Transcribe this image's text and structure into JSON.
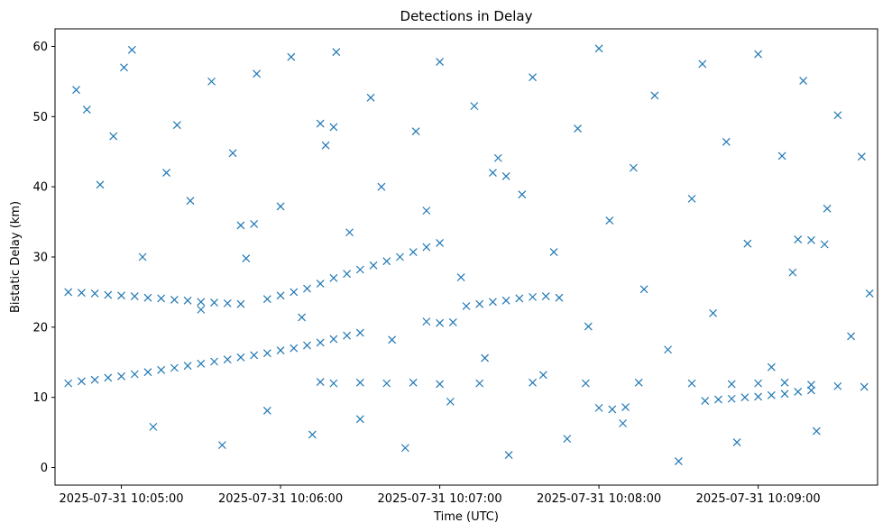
{
  "chart_data": {
    "type": "scatter",
    "title": "Detections in Delay",
    "xlabel": "Time (UTC)",
    "ylabel": "Bistatic Delay (km)",
    "x_range": [
      "2025-07-31 10:04:35",
      "2025-07-31 10:09:45"
    ],
    "ylim": [
      -2.5,
      62.5
    ],
    "xticks": [
      {
        "time": "2025-07-31 10:05:00",
        "label": "2025-07-31 10:05:00"
      },
      {
        "time": "2025-07-31 10:06:00",
        "label": "2025-07-31 10:06:00"
      },
      {
        "time": "2025-07-31 10:07:00",
        "label": "2025-07-31 10:07:00"
      },
      {
        "time": "2025-07-31 10:08:00",
        "label": "2025-07-31 10:08:00"
      },
      {
        "time": "2025-07-31 10:09:00",
        "label": "2025-07-31 10:09:00"
      }
    ],
    "yticks": [
      0,
      10,
      20,
      30,
      40,
      50,
      60
    ],
    "marker": "x",
    "color": "#1f77b4",
    "grid": false,
    "legend": false,
    "series": [
      {
        "points": [
          [
            "2025-07-31 10:04:40",
            12.0
          ],
          [
            "2025-07-31 10:04:45",
            12.3
          ],
          [
            "2025-07-31 10:04:50",
            12.5
          ],
          [
            "2025-07-31 10:04:55",
            12.8
          ],
          [
            "2025-07-31 10:05:00",
            13.0
          ],
          [
            "2025-07-31 10:05:05",
            13.3
          ],
          [
            "2025-07-31 10:05:10",
            13.6
          ],
          [
            "2025-07-31 10:05:15",
            13.9
          ],
          [
            "2025-07-31 10:05:20",
            14.2
          ],
          [
            "2025-07-31 10:05:25",
            14.5
          ],
          [
            "2025-07-31 10:05:30",
            14.8
          ],
          [
            "2025-07-31 10:05:35",
            15.1
          ],
          [
            "2025-07-31 10:05:40",
            15.4
          ],
          [
            "2025-07-31 10:05:45",
            15.7
          ],
          [
            "2025-07-31 10:05:50",
            16.0
          ],
          [
            "2025-07-31 10:05:55",
            16.3
          ],
          [
            "2025-07-31 10:06:00",
            16.7
          ],
          [
            "2025-07-31 10:06:05",
            17.0
          ],
          [
            "2025-07-31 10:06:10",
            17.4
          ],
          [
            "2025-07-31 10:06:15",
            17.8
          ],
          [
            "2025-07-31 10:06:20",
            18.3
          ],
          [
            "2025-07-31 10:06:25",
            18.8
          ],
          [
            "2025-07-31 10:06:30",
            19.2
          ],
          [
            "2025-07-31 10:04:40",
            25.0
          ],
          [
            "2025-07-31 10:04:45",
            24.9
          ],
          [
            "2025-07-31 10:04:50",
            24.8
          ],
          [
            "2025-07-31 10:04:55",
            24.6
          ],
          [
            "2025-07-31 10:05:00",
            24.5
          ],
          [
            "2025-07-31 10:05:05",
            24.4
          ],
          [
            "2025-07-31 10:05:10",
            24.2
          ],
          [
            "2025-07-31 10:05:15",
            24.1
          ],
          [
            "2025-07-31 10:05:20",
            23.9
          ],
          [
            "2025-07-31 10:05:25",
            23.8
          ],
          [
            "2025-07-31 10:05:30",
            23.6
          ],
          [
            "2025-07-31 10:05:35",
            23.5
          ],
          [
            "2025-07-31 10:05:40",
            23.4
          ],
          [
            "2025-07-31 10:05:45",
            23.3
          ],
          [
            "2025-07-31 10:05:55",
            24.0
          ],
          [
            "2025-07-31 10:06:00",
            24.5
          ],
          [
            "2025-07-31 10:06:05",
            25.0
          ],
          [
            "2025-07-31 10:06:10",
            25.5
          ],
          [
            "2025-07-31 10:06:15",
            26.2
          ],
          [
            "2025-07-31 10:06:20",
            27.0
          ],
          [
            "2025-07-31 10:06:25",
            27.6
          ],
          [
            "2025-07-31 10:06:30",
            28.2
          ],
          [
            "2025-07-31 10:06:35",
            28.8
          ],
          [
            "2025-07-31 10:06:40",
            29.4
          ],
          [
            "2025-07-31 10:06:45",
            30.0
          ],
          [
            "2025-07-31 10:06:50",
            30.7
          ],
          [
            "2025-07-31 10:06:55",
            31.4
          ],
          [
            "2025-07-31 10:07:00",
            32.0
          ],
          [
            "2025-07-31 10:06:55",
            20.8
          ],
          [
            "2025-07-31 10:07:00",
            20.6
          ],
          [
            "2025-07-31 10:07:05",
            20.7
          ],
          [
            "2025-07-31 10:07:10",
            23.0
          ],
          [
            "2025-07-31 10:07:15",
            23.3
          ],
          [
            "2025-07-31 10:07:20",
            23.6
          ],
          [
            "2025-07-31 10:07:25",
            23.8
          ],
          [
            "2025-07-31 10:07:30",
            24.1
          ],
          [
            "2025-07-31 10:07:35",
            24.3
          ],
          [
            "2025-07-31 10:07:40",
            24.4
          ],
          [
            "2025-07-31 10:07:45",
            24.2
          ],
          [
            "2025-07-31 10:06:15",
            12.2
          ],
          [
            "2025-07-31 10:06:20",
            12.0
          ],
          [
            "2025-07-31 10:06:30",
            12.1
          ],
          [
            "2025-07-31 10:06:40",
            12.0
          ],
          [
            "2025-07-31 10:06:50",
            12.1
          ],
          [
            "2025-07-31 10:07:00",
            11.9
          ],
          [
            "2025-07-31 10:07:15",
            12.0
          ],
          [
            "2025-07-31 10:07:35",
            12.1
          ],
          [
            "2025-07-31 10:07:55",
            12.0
          ],
          [
            "2025-07-31 10:08:15",
            12.1
          ],
          [
            "2025-07-31 10:08:35",
            12.0
          ],
          [
            "2025-07-31 10:08:50",
            11.9
          ],
          [
            "2025-07-31 10:09:00",
            12.0
          ],
          [
            "2025-07-31 10:09:10",
            12.1
          ],
          [
            "2025-07-31 10:09:20",
            11.8
          ],
          [
            "2025-07-31 10:09:30",
            11.6
          ],
          [
            "2025-07-31 10:09:40",
            11.5
          ],
          [
            "2025-07-31 10:08:40",
            9.5
          ],
          [
            "2025-07-31 10:08:45",
            9.7
          ],
          [
            "2025-07-31 10:08:50",
            9.8
          ],
          [
            "2025-07-31 10:08:55",
            10.0
          ],
          [
            "2025-07-31 10:09:00",
            10.1
          ],
          [
            "2025-07-31 10:09:05",
            10.3
          ],
          [
            "2025-07-31 10:09:10",
            10.5
          ],
          [
            "2025-07-31 10:09:15",
            10.8
          ],
          [
            "2025-07-31 10:09:20",
            11.0
          ],
          [
            "2025-07-31 10:08:00",
            8.5
          ],
          [
            "2025-07-31 10:08:05",
            8.3
          ],
          [
            "2025-07-31 10:08:10",
            8.6
          ],
          [
            "2025-07-31 10:05:45",
            34.5
          ],
          [
            "2025-07-31 10:05:50",
            34.7
          ],
          [
            "2025-07-31 10:06:15",
            49.0
          ],
          [
            "2025-07-31 10:06:20",
            48.5
          ],
          [
            "2025-07-31 10:07:20",
            42.0
          ],
          [
            "2025-07-31 10:07:25",
            41.5
          ],
          [
            "2025-07-31 10:09:15",
            32.5
          ],
          [
            "2025-07-31 10:09:20",
            32.4
          ],
          [
            "2025-07-31 10:09:25",
            31.8
          ],
          [
            "2025-07-31 10:04:43",
            53.8
          ],
          [
            "2025-07-31 10:04:47",
            51.0
          ],
          [
            "2025-07-31 10:04:52",
            40.3
          ],
          [
            "2025-07-31 10:04:57",
            47.2
          ],
          [
            "2025-07-31 10:05:01",
            57.0
          ],
          [
            "2025-07-31 10:05:04",
            59.5
          ],
          [
            "2025-07-31 10:05:08",
            30.0
          ],
          [
            "2025-07-31 10:05:12",
            5.8
          ],
          [
            "2025-07-31 10:05:17",
            42.0
          ],
          [
            "2025-07-31 10:05:21",
            48.8
          ],
          [
            "2025-07-31 10:05:26",
            38.0
          ],
          [
            "2025-07-31 10:05:30",
            22.5
          ],
          [
            "2025-07-31 10:05:34",
            55.0
          ],
          [
            "2025-07-31 10:05:38",
            3.2
          ],
          [
            "2025-07-31 10:05:42",
            44.8
          ],
          [
            "2025-07-31 10:05:47",
            29.8
          ],
          [
            "2025-07-31 10:05:51",
            56.1
          ],
          [
            "2025-07-31 10:05:55",
            8.1
          ],
          [
            "2025-07-31 10:06:00",
            37.2
          ],
          [
            "2025-07-31 10:06:04",
            58.5
          ],
          [
            "2025-07-31 10:06:08",
            21.4
          ],
          [
            "2025-07-31 10:06:12",
            4.7
          ],
          [
            "2025-07-31 10:06:17",
            45.9
          ],
          [
            "2025-07-31 10:06:21",
            59.2
          ],
          [
            "2025-07-31 10:06:26",
            33.5
          ],
          [
            "2025-07-31 10:06:30",
            6.9
          ],
          [
            "2025-07-31 10:06:34",
            52.7
          ],
          [
            "2025-07-31 10:06:38",
            40.0
          ],
          [
            "2025-07-31 10:06:42",
            18.2
          ],
          [
            "2025-07-31 10:06:47",
            2.8
          ],
          [
            "2025-07-31 10:06:51",
            47.9
          ],
          [
            "2025-07-31 10:06:55",
            36.6
          ],
          [
            "2025-07-31 10:07:00",
            57.8
          ],
          [
            "2025-07-31 10:07:04",
            9.4
          ],
          [
            "2025-07-31 10:07:08",
            27.1
          ],
          [
            "2025-07-31 10:07:13",
            51.5
          ],
          [
            "2025-07-31 10:07:17",
            15.6
          ],
          [
            "2025-07-31 10:07:22",
            44.1
          ],
          [
            "2025-07-31 10:07:26",
            1.8
          ],
          [
            "2025-07-31 10:07:31",
            38.9
          ],
          [
            "2025-07-31 10:07:35",
            55.6
          ],
          [
            "2025-07-31 10:07:39",
            13.2
          ],
          [
            "2025-07-31 10:07:43",
            30.7
          ],
          [
            "2025-07-31 10:07:48",
            4.1
          ],
          [
            "2025-07-31 10:07:52",
            48.3
          ],
          [
            "2025-07-31 10:07:56",
            20.1
          ],
          [
            "2025-07-31 10:08:00",
            59.7
          ],
          [
            "2025-07-31 10:08:04",
            35.2
          ],
          [
            "2025-07-31 10:08:09",
            6.3
          ],
          [
            "2025-07-31 10:08:13",
            42.7
          ],
          [
            "2025-07-31 10:08:17",
            25.4
          ],
          [
            "2025-07-31 10:08:21",
            53.0
          ],
          [
            "2025-07-31 10:08:26",
            16.8
          ],
          [
            "2025-07-31 10:08:30",
            0.9
          ],
          [
            "2025-07-31 10:08:35",
            38.3
          ],
          [
            "2025-07-31 10:08:39",
            57.5
          ],
          [
            "2025-07-31 10:08:43",
            22.0
          ],
          [
            "2025-07-31 10:08:48",
            46.4
          ],
          [
            "2025-07-31 10:08:52",
            3.6
          ],
          [
            "2025-07-31 10:08:56",
            31.9
          ],
          [
            "2025-07-31 10:09:00",
            58.9
          ],
          [
            "2025-07-31 10:09:05",
            14.3
          ],
          [
            "2025-07-31 10:09:09",
            44.4
          ],
          [
            "2025-07-31 10:09:13",
            27.8
          ],
          [
            "2025-07-31 10:09:17",
            55.1
          ],
          [
            "2025-07-31 10:09:22",
            5.2
          ],
          [
            "2025-07-31 10:09:26",
            36.9
          ],
          [
            "2025-07-31 10:09:30",
            50.2
          ],
          [
            "2025-07-31 10:09:35",
            18.7
          ],
          [
            "2025-07-31 10:09:39",
            44.3
          ],
          [
            "2025-07-31 10:09:42",
            24.8
          ]
        ]
      }
    ]
  }
}
